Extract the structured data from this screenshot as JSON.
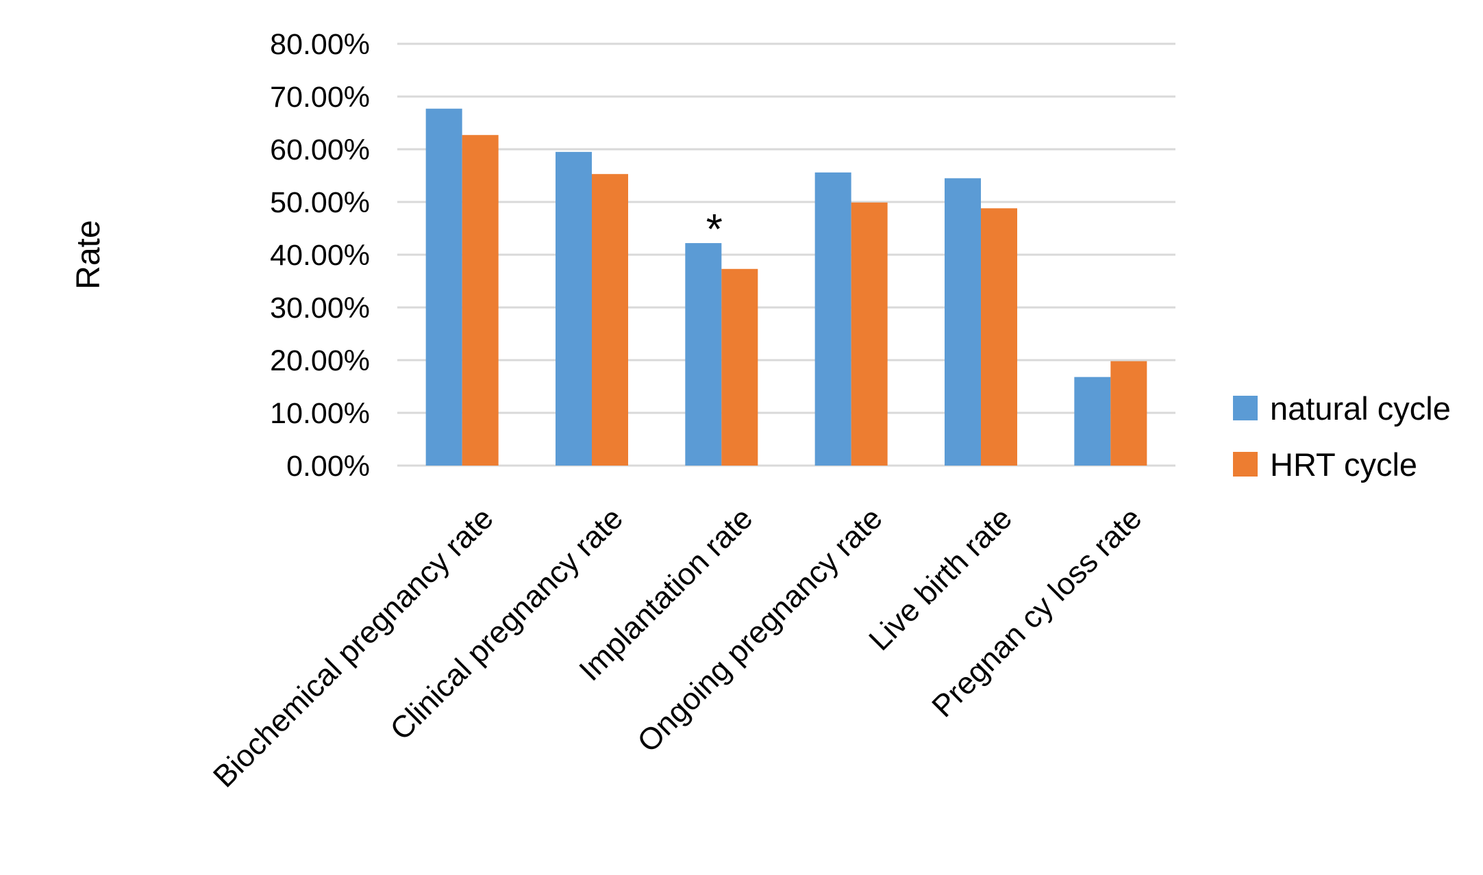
{
  "chart_data": {
    "type": "bar",
    "title": "",
    "xlabel": "",
    "ylabel": "Rate",
    "categories": [
      "Biochemical pregnancy rate",
      "Clinical pregnancy rate",
      "Implantation rate",
      "Ongoing pregnancy rate",
      "Live birth rate",
      "Pregnan cy loss rate"
    ],
    "series": [
      {
        "name": "natural cycle",
        "color": "#5b9bd5",
        "values": [
          67.7,
          59.5,
          42.2,
          55.6,
          54.5,
          16.8
        ]
      },
      {
        "name": "HRT cycle",
        "color": "#ed7d31",
        "values": [
          62.7,
          55.3,
          37.3,
          49.9,
          48.8,
          19.8
        ]
      }
    ],
    "ylim": [
      0,
      80
    ],
    "yticks": [
      "0.00%",
      "10.00%",
      "20.00%",
      "30.00%",
      "40.00%",
      "50.00%",
      "60.00%",
      "70.00%",
      "80.00%"
    ],
    "grid": true,
    "legend_position": "right",
    "annotations": [
      {
        "text": "*",
        "category": "Implantation rate",
        "series": "HRT cycle"
      }
    ]
  }
}
